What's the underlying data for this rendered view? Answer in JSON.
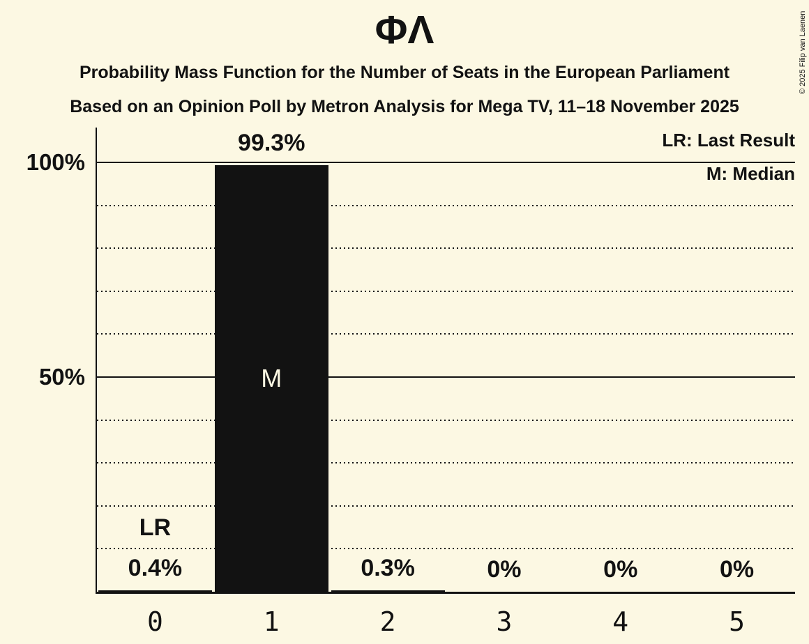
{
  "chart_data": {
    "type": "bar",
    "title": "ΦΛ",
    "subtitle_line1": "Probability Mass Function for the Number of Seats in the European Parliament",
    "subtitle_line2": "Based on an Opinion Poll by Metron Analysis for Mega TV, 11–18 November 2025",
    "xlabel": "",
    "ylabel": "",
    "ylim": [
      0,
      100
    ],
    "categories": [
      "0",
      "1",
      "2",
      "3",
      "4",
      "5"
    ],
    "values": [
      0.4,
      99.3,
      0.3,
      0,
      0,
      0
    ],
    "value_labels": [
      "0.4%",
      "99.3%",
      "0.3%",
      "0%",
      "0%",
      "0%"
    ],
    "yticks": [
      {
        "label": "100%",
        "value": 100
      },
      {
        "label": "50%",
        "value": 50
      }
    ],
    "dotted_gridlines": [
      90,
      80,
      70,
      60,
      40,
      30,
      20,
      10
    ],
    "grid": "horizontal, dotted every 10%, solid at 50% and 100%",
    "legend": {
      "position": "top-right",
      "lr": "LR: Last Result",
      "m": "M: Median"
    },
    "annotations": {
      "last_result": {
        "category": "0",
        "label": "LR"
      },
      "median": {
        "category": "1",
        "label": "M"
      }
    },
    "copyright": "© 2025 Filip van Laenen",
    "colors": {
      "background": "#FCF8E3",
      "ink": "#121212",
      "bar": "#121212",
      "bar_text": "#FCF8E3"
    }
  }
}
